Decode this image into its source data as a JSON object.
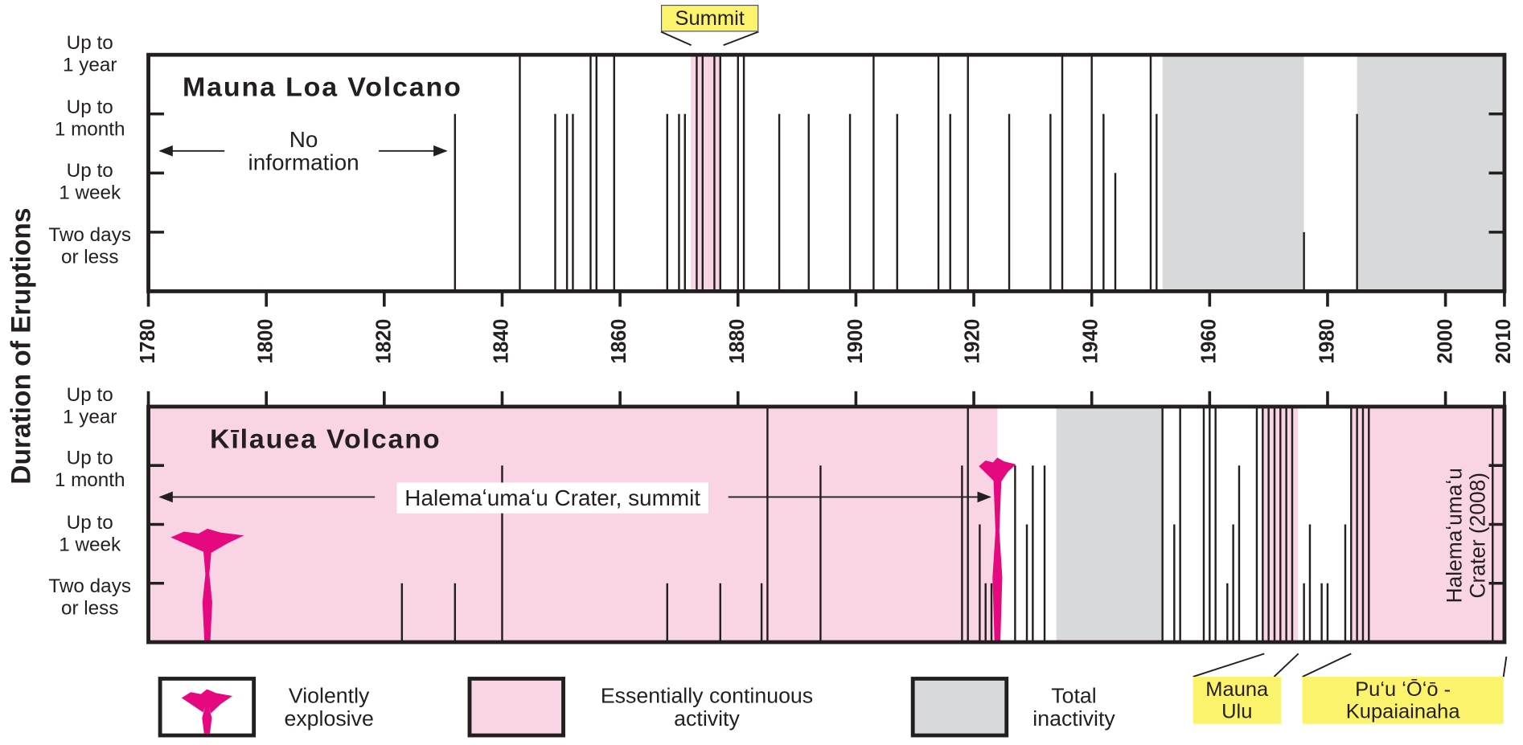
{
  "y_label": "Duration of Eruptions",
  "legend": [
    {
      "name": "Violently\nexplosive",
      "color": "#e6087f"
    },
    {
      "name": "Essentially continuous\nactivity",
      "color": "#f9d4e4"
    },
    {
      "name": "Total\ninactivity",
      "color": "#d8d9da"
    }
  ],
  "chart_data": [
    {
      "type": "timeline",
      "title": "Mauna Loa Volcano",
      "color": "#231f20",
      "xlim": [
        1780,
        2010
      ],
      "xticks": [
        1780,
        1800,
        1820,
        1840,
        1860,
        1880,
        1900,
        1920,
        1940,
        1960,
        1980,
        2000,
        2010
      ],
      "ylim": [
        0,
        4
      ],
      "yticks": [
        {
          "value": 4,
          "label": "Up to\n1 year"
        },
        {
          "value": 3,
          "label": "Up to\n1 month"
        },
        {
          "value": 2,
          "label": "Up to\n1 week"
        },
        {
          "value": 1,
          "label": "Two days\nor less"
        }
      ],
      "x": [
        1832,
        1843,
        1849,
        1851,
        1852,
        1855,
        1856,
        1859,
        1868,
        1870,
        1871,
        1873,
        1874,
        1876,
        1877,
        1880,
        1881,
        1887,
        1892,
        1899,
        1903,
        1907,
        1914,
        1916,
        1919,
        1926,
        1933,
        1935,
        1940,
        1942,
        1944,
        1950,
        1951,
        1976,
        1985
      ],
      "values": [
        3,
        4,
        3,
        3,
        3,
        4,
        4,
        4,
        3,
        3,
        3,
        4,
        4,
        4,
        4,
        4,
        4,
        3,
        3,
        3,
        4,
        3,
        4,
        3,
        4,
        3,
        3,
        4,
        4,
        3,
        2,
        4,
        3,
        1,
        3
      ],
      "continuous": [
        [
          1872,
          1877
        ]
      ],
      "inactive": [
        [
          1952,
          1976
        ],
        [
          1985,
          2010
        ]
      ],
      "explosive": [],
      "annotations": [
        "No\ninformation",
        "Summit"
      ]
    },
    {
      "type": "timeline",
      "title": "Kīlauea Volcano",
      "color": "#231f20",
      "xlim": [
        1780,
        2010
      ],
      "xticks": [
        1780,
        1800,
        1820,
        1840,
        1860,
        1880,
        1900,
        1920,
        1940,
        1960,
        1980,
        2000,
        2010
      ],
      "ylim": [
        0,
        4
      ],
      "yticks": [
        {
          "value": 4,
          "label": "Up to\n1 year"
        },
        {
          "value": 3,
          "label": "Up to\n1 month"
        },
        {
          "value": 2,
          "label": "Up to\n1 week"
        },
        {
          "value": 1,
          "label": "Two days\nor less"
        }
      ],
      "x": [
        1823,
        1832,
        1840,
        1868,
        1877,
        1884,
        1885,
        1894,
        1918,
        1919,
        1921,
        1922,
        1923,
        1927,
        1929,
        1930,
        1932,
        1952,
        1954,
        1955,
        1959,
        1960,
        1961,
        1963,
        1964,
        1965,
        1968,
        1969,
        1970,
        1971,
        1972,
        1973,
        1974,
        1976,
        1977,
        1979,
        1980,
        1983,
        1984,
        1985,
        1986,
        1987,
        2008
      ],
      "values": [
        1,
        1,
        3,
        1,
        1,
        1,
        4,
        3,
        3,
        4,
        2,
        1,
        1,
        3,
        2,
        3,
        3,
        4,
        2,
        4,
        4,
        4,
        4,
        1,
        2,
        3,
        4,
        4,
        4,
        4,
        4,
        4,
        4,
        1,
        2,
        1,
        1,
        2,
        4,
        4,
        4,
        4,
        4
      ],
      "continuous": [
        [
          1780,
          1924
        ],
        [
          1969,
          1975
        ],
        [
          1984,
          2008
        ],
        [
          2008,
          2010
        ]
      ],
      "inactive": [
        [
          1934,
          1952
        ]
      ],
      "explosive": [
        1790,
        1924
      ],
      "annotations": [
        "Halemaʻumaʻu Crater, summit",
        "Halemaʻumaʻu\nCrater (2008)",
        "Mauna\nUlu",
        "Puʻu ʻŌʻō -\nKupaiainaha"
      ]
    }
  ]
}
